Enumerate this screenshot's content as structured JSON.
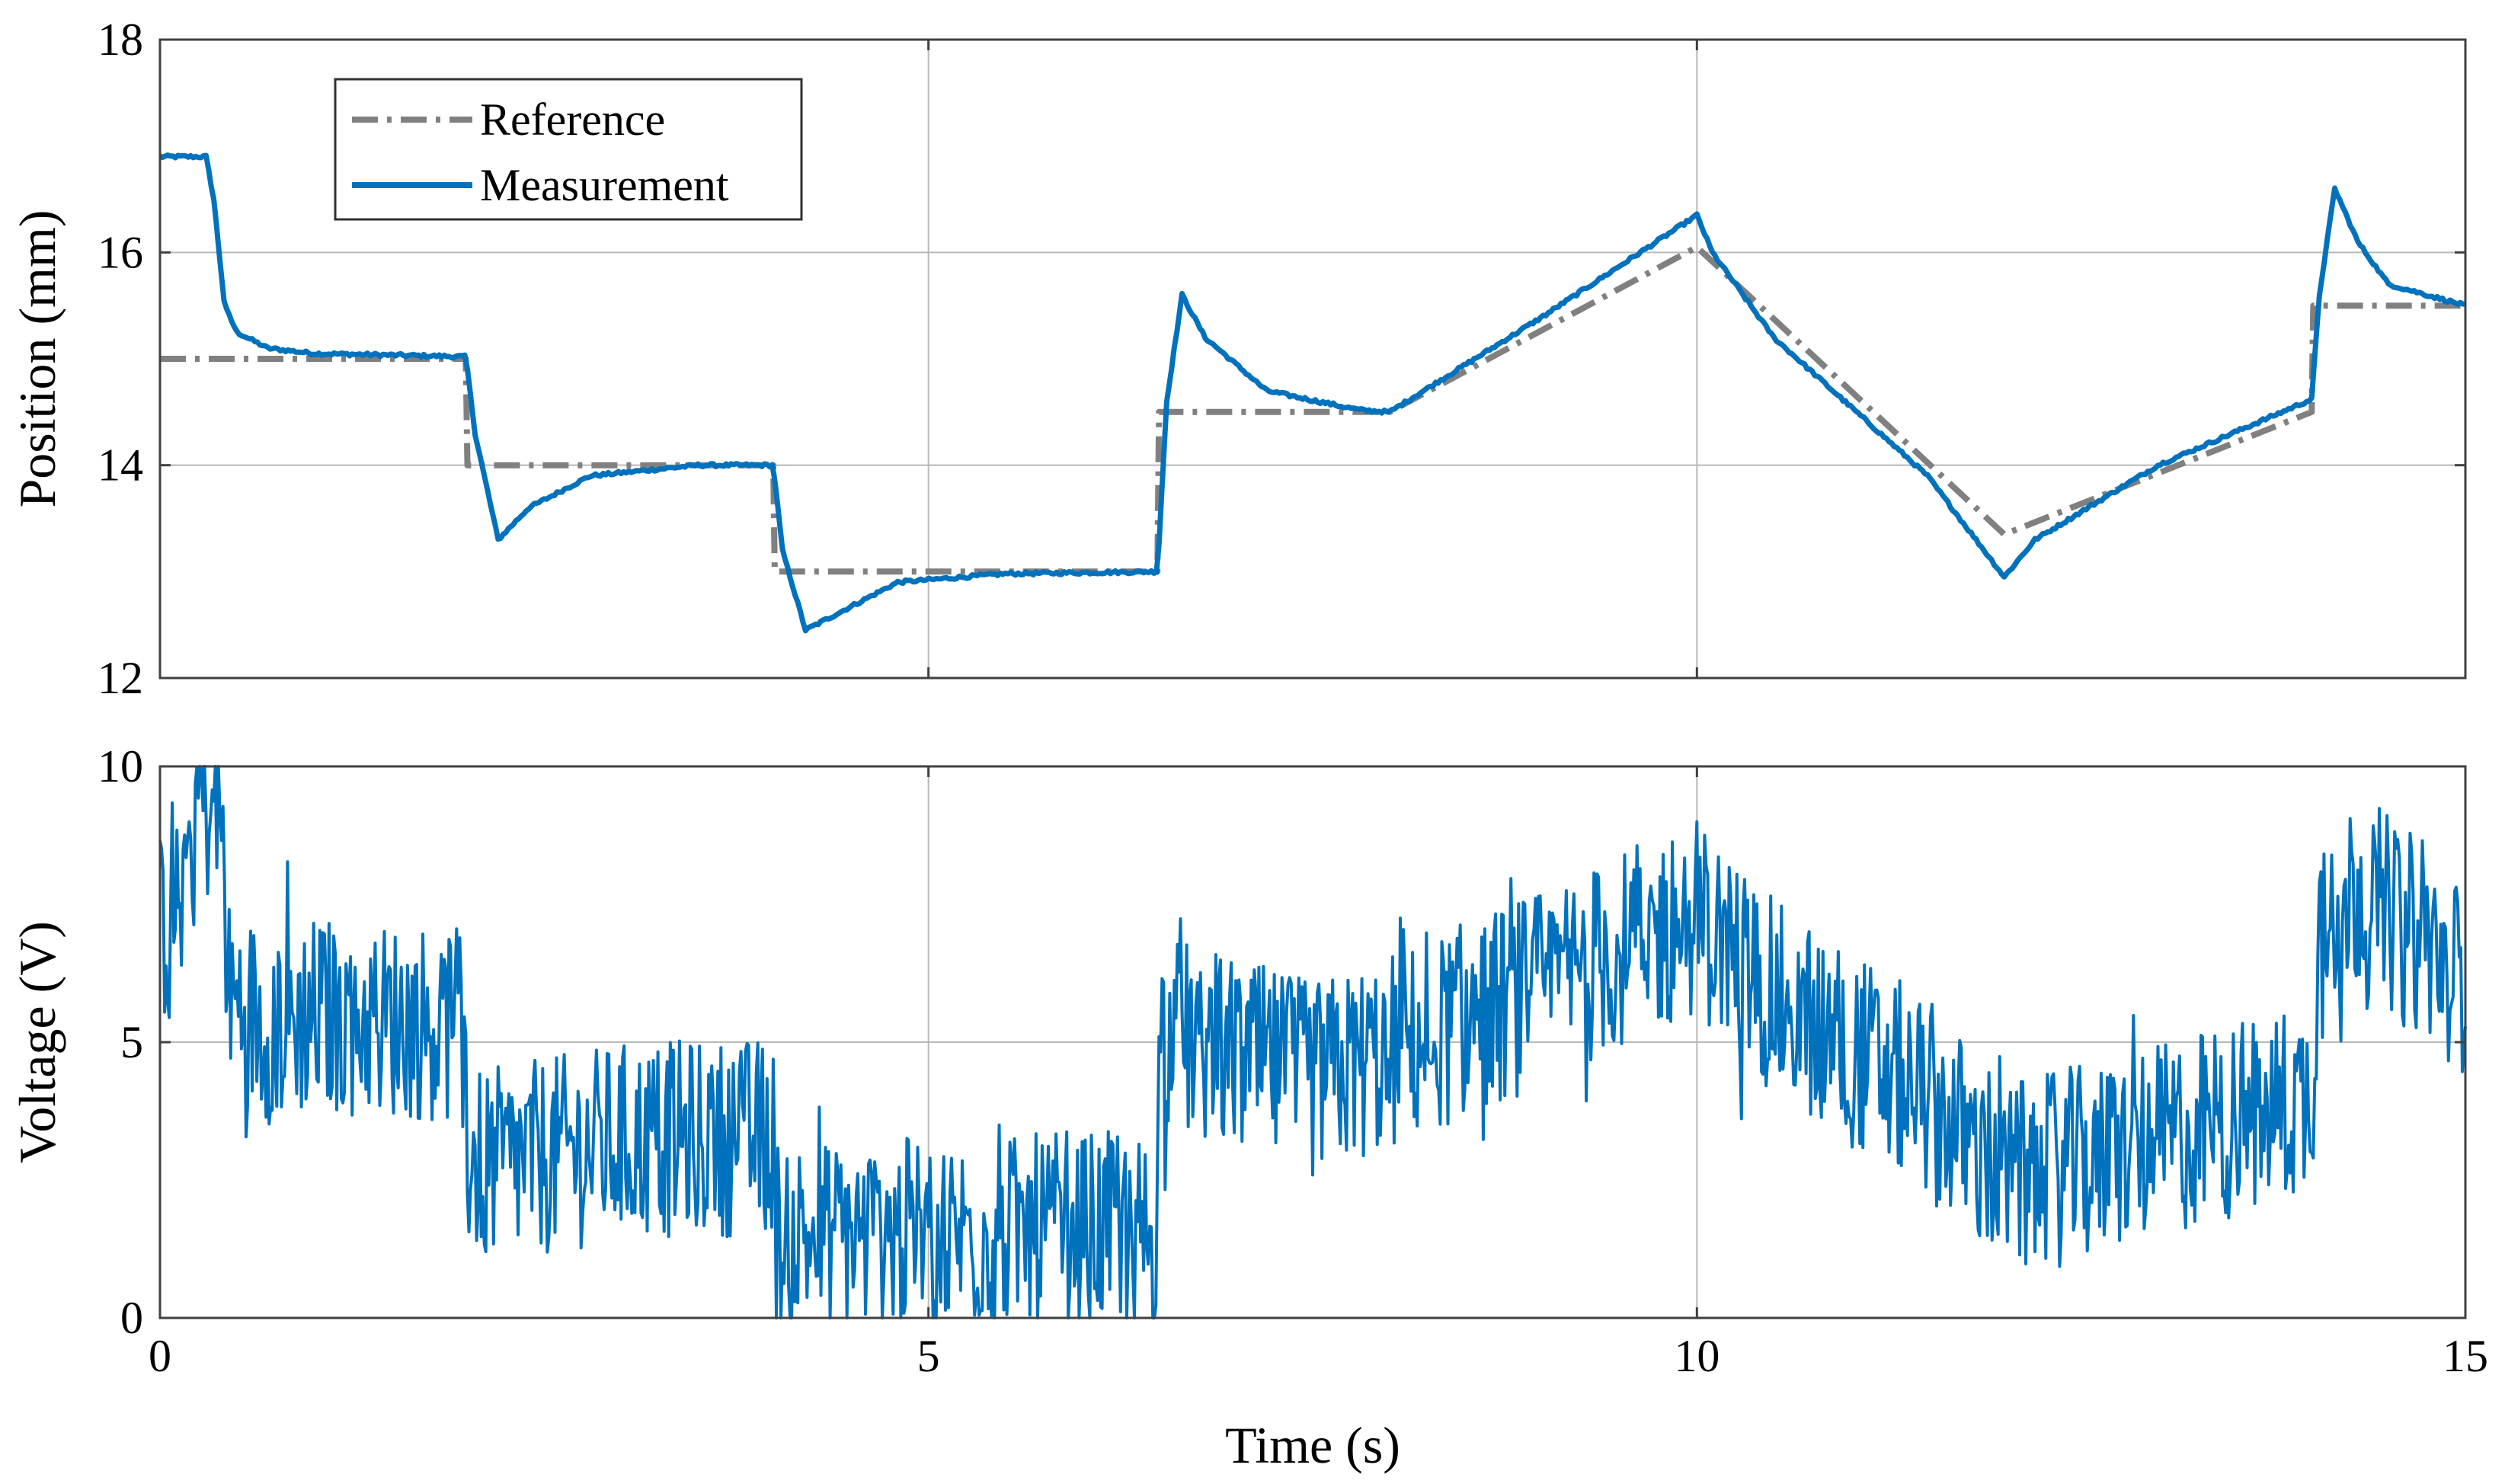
{
  "chart_data": [
    {
      "type": "line",
      "panel": "top",
      "title": "",
      "xlabel": "",
      "ylabel": "Position (mm)",
      "xlim": [
        0,
        15
      ],
      "ylim": [
        12,
        18
      ],
      "xticks": [
        0,
        5,
        10,
        15
      ],
      "yticks": [
        12,
        14,
        16,
        18
      ],
      "xtick_labels": [
        "",
        "",
        "",
        ""
      ],
      "ytick_labels": [
        "12",
        "14",
        "16",
        "18"
      ],
      "grid": true,
      "legend_position": "top-left",
      "series": [
        {
          "name": "Reference",
          "style": "dash-dot",
          "color": "#808080",
          "x": [
            0,
            1.99,
            2.0,
            3.99,
            4.0,
            6.49,
            6.5,
            8.0,
            10.0,
            12.0,
            14.0,
            14.01,
            15.0
          ],
          "y": [
            15.0,
            15.0,
            14.0,
            14.0,
            13.0,
            13.0,
            14.5,
            14.5,
            16.05,
            13.35,
            14.5,
            15.5,
            15.5
          ]
        },
        {
          "name": "Measurement",
          "style": "solid",
          "color": "#0072BD",
          "x": [
            0,
            0.3,
            0.35,
            0.42,
            0.5,
            0.7,
            1.0,
            1.99,
            2.05,
            2.2,
            2.4,
            2.8,
            3.5,
            3.99,
            4.05,
            4.2,
            4.4,
            4.8,
            5.5,
            6.49,
            6.55,
            6.65,
            6.8,
            7.2,
            7.8,
            8.0,
            9.0,
            10.0,
            10.1,
            10.5,
            11.5,
            12.0,
            12.2,
            13.0,
            14.0,
            14.05,
            14.15,
            14.3,
            14.5,
            15.0
          ],
          "y": [
            16.9,
            16.9,
            16.5,
            15.5,
            15.25,
            15.1,
            15.05,
            15.02,
            14.3,
            13.3,
            13.6,
            13.9,
            14.0,
            14.0,
            13.2,
            12.45,
            12.6,
            12.9,
            12.98,
            13.0,
            14.6,
            15.6,
            15.2,
            14.7,
            14.52,
            14.5,
            15.4,
            16.35,
            16.0,
            15.2,
            13.9,
            12.95,
            13.3,
            14.0,
            14.62,
            15.6,
            16.6,
            16.1,
            15.7,
            15.5
          ]
        }
      ]
    },
    {
      "type": "line",
      "panel": "bottom",
      "title": "",
      "xlabel": "Time (s)",
      "ylabel": "Voltage (V)",
      "xlim": [
        0,
        15
      ],
      "ylim": [
        0,
        10
      ],
      "xticks": [
        0,
        5,
        10,
        15
      ],
      "yticks": [
        0,
        5,
        10
      ],
      "xtick_labels": [
        "0",
        "5",
        "10",
        "15"
      ],
      "ytick_labels": [
        "0",
        "5",
        "10"
      ],
      "grid": true,
      "series": [
        {
          "name": "Voltage",
          "style": "solid",
          "color": "#0072BD",
          "noise_amplitude": 1.8,
          "x": [
            0,
            0.1,
            0.25,
            0.4,
            0.45,
            0.7,
            1.0,
            1.99,
            2.0,
            2.1,
            3.0,
            3.99,
            4.0,
            5.0,
            6.49,
            6.5,
            7.5,
            8.0,
            9.0,
            10.0,
            10.5,
            11.5,
            12.0,
            12.5,
            13.0,
            14.0,
            14.05,
            14.3,
            15.0
          ],
          "y": [
            7.0,
            7.5,
            9.5,
            9.0,
            5.8,
            5.3,
            5.5,
            5.3,
            3.0,
            2.7,
            3.2,
            3.3,
            1.5,
            1.5,
            1.6,
            5.2,
            4.3,
            4.8,
            6.0,
            7.3,
            5.8,
            4.0,
            2.5,
            2.8,
            3.2,
            4.0,
            7.2,
            7.8,
            6.2
          ]
        }
      ]
    }
  ],
  "legend": {
    "reference_label": "Reference",
    "measurement_label": "Measurement"
  },
  "colors": {
    "measurement": "#0072BD",
    "reference": "#808080",
    "grid": "#b8b8b8",
    "axis": "#404040"
  }
}
